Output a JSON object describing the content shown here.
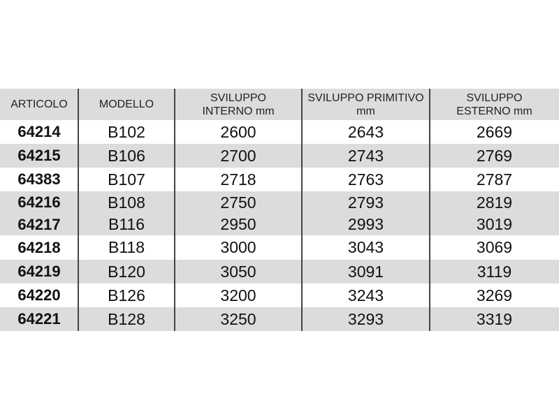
{
  "table": {
    "headers": [
      "ARTICOLO",
      "MODELLO",
      "SVILUPPO\nINTERNO mm",
      "SVILUPPO PRIMITIVO\nmm",
      "SVILUPPO\nESTERNO mm"
    ],
    "header_lines": [
      [
        "ARTICOLO"
      ],
      [
        "MODELLO"
      ],
      [
        "SVILUPPO",
        "INTERNO mm"
      ],
      [
        "SVILUPPO PRIMITIVO",
        "mm"
      ],
      [
        "SVILUPPO",
        "ESTERNO mm"
      ]
    ],
    "rows": [
      [
        "64214",
        "B102",
        "2600",
        "2643",
        "2669"
      ],
      [
        "64215",
        "B106",
        "2700",
        "2743",
        "2769"
      ],
      [
        "64383",
        "B107",
        "2718",
        "2763",
        "2787"
      ],
      [
        "64216",
        "B108",
        "2750",
        "2793",
        "2819"
      ],
      [
        "64217",
        "B116",
        "2950",
        "2993",
        "3019"
      ],
      [
        "64218",
        "B118",
        "3000",
        "3043",
        "3069"
      ],
      [
        "64219",
        "B120",
        "3050",
        "3091",
        "3119"
      ],
      [
        "64220",
        "B126",
        "3200",
        "3243",
        "3269"
      ],
      [
        "64221",
        "B128",
        "3250",
        "3293",
        "3319"
      ]
    ]
  },
  "colors": {
    "band": "#dcdcde",
    "divider": "#444444",
    "text": "#111111"
  }
}
